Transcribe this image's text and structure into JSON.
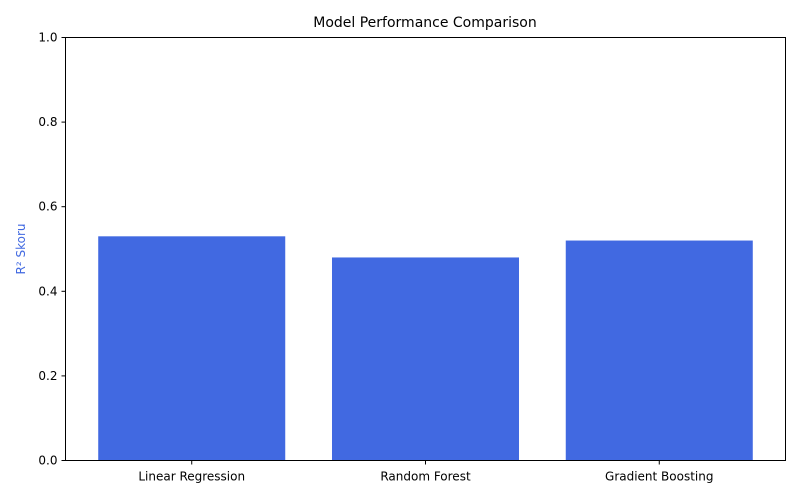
{
  "chart_data": {
    "type": "bar",
    "title": "Model Performance Comparison",
    "xlabel": "",
    "ylabel": "R² Skoru",
    "ylabel_color": "#4169e1",
    "categories": [
      "Linear Regression",
      "Random Forest",
      "Gradient Boosting"
    ],
    "values": [
      0.53,
      0.48,
      0.52
    ],
    "bar_color": "#4169e1",
    "ylim": [
      0,
      1.0
    ],
    "yticks": [
      "0.0",
      "0.2",
      "0.4",
      "0.6",
      "0.8",
      "1.0"
    ],
    "grid": false,
    "legend": "none"
  }
}
